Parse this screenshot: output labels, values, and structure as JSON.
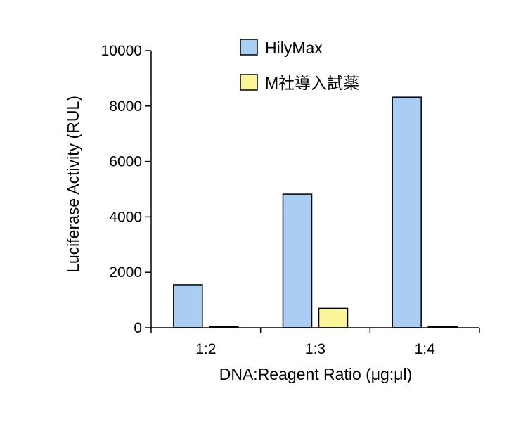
{
  "chart_data": {
    "type": "bar",
    "categories": [
      "1:2",
      "1:3",
      "1:4"
    ],
    "series": [
      {
        "name": "HilyMax",
        "color": "#a9cdf3",
        "values": [
          1550,
          4820,
          8320
        ]
      },
      {
        "name": "M社導入試薬",
        "color": "#fbf59a",
        "values": [
          40,
          700,
          40
        ]
      }
    ],
    "xlabel": "DNA:Reagent Ratio (μg:μl)",
    "ylabel": "Luciferase Activity (RUL)",
    "ylim": [
      0,
      10000
    ],
    "yticks": [
      0,
      2000,
      4000,
      6000,
      8000,
      10000
    ],
    "grid": false,
    "legend_position": "top-right"
  }
}
